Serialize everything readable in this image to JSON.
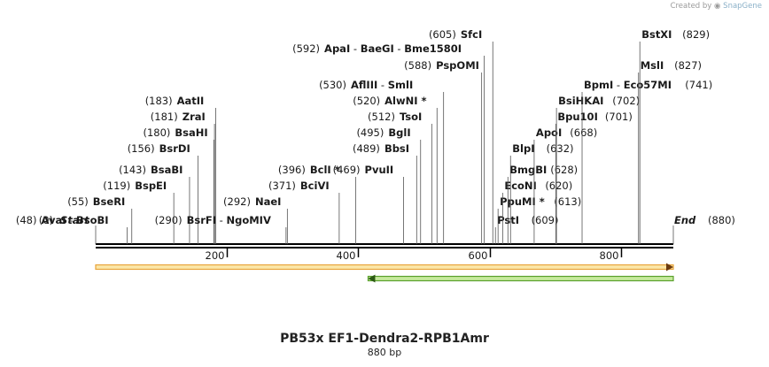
{
  "credit": {
    "prefix": "Created by",
    "brand": "SnapGene"
  },
  "title": "PB53x EF1-Dendra2-RPB1Amr",
  "subtitle": "880 bp",
  "map": {
    "length": 880,
    "ticks": [
      200,
      400,
      600,
      800
    ],
    "start": {
      "label": "Start",
      "position": 0
    },
    "end": {
      "label": "End",
      "position": 880
    },
    "features": [
      {
        "name": "orange-feature",
        "start": 0,
        "end": 880,
        "direction": "forward",
        "color": "#e8a33a",
        "fill": "#fbe6a8"
      },
      {
        "name": "green-feature",
        "start": 415,
        "end": 880,
        "direction": "reverse",
        "color": "#5aa02c",
        "fill": "#c6ea9c"
      }
    ]
  },
  "sites": [
    {
      "enzymes": [
        "AvaI",
        "BsoBI"
      ],
      "position": 48,
      "side": "left"
    },
    {
      "enzymes": [
        "BseRI"
      ],
      "position": 55,
      "side": "left"
    },
    {
      "enzymes": [
        "BspEI"
      ],
      "position": 119,
      "side": "left"
    },
    {
      "enzymes": [
        "BsaBI"
      ],
      "position": 143,
      "side": "left"
    },
    {
      "enzymes": [
        "BsrDI"
      ],
      "position": 156,
      "side": "left"
    },
    {
      "enzymes": [
        "BsaHI"
      ],
      "position": 180,
      "side": "left"
    },
    {
      "enzymes": [
        "ZraI"
      ],
      "position": 181,
      "side": "left"
    },
    {
      "enzymes": [
        "AatII"
      ],
      "position": 183,
      "side": "left"
    },
    {
      "enzymes": [
        "BsrFI",
        "NgoMIV"
      ],
      "position": 290,
      "side": "left"
    },
    {
      "enzymes": [
        "NaeI"
      ],
      "position": 292,
      "side": "left"
    },
    {
      "enzymes": [
        "BciVI"
      ],
      "position": 371,
      "side": "left"
    },
    {
      "enzymes": [
        "BclI *"
      ],
      "position": 396,
      "side": "left"
    },
    {
      "enzymes": [
        "PvuII"
      ],
      "position": 469,
      "side": "left"
    },
    {
      "enzymes": [
        "BbsI"
      ],
      "position": 489,
      "side": "left"
    },
    {
      "enzymes": [
        "BglI"
      ],
      "position": 495,
      "side": "left"
    },
    {
      "enzymes": [
        "TsoI"
      ],
      "position": 512,
      "side": "left"
    },
    {
      "enzymes": [
        "AlwNI *"
      ],
      "position": 520,
      "side": "left"
    },
    {
      "enzymes": [
        "AflIII",
        "SmlI"
      ],
      "position": 530,
      "side": "left"
    },
    {
      "enzymes": [
        "PspOMI"
      ],
      "position": 588,
      "side": "left"
    },
    {
      "enzymes": [
        "ApaI",
        "BaeGI",
        "Bme1580I"
      ],
      "position": 592,
      "side": "left"
    },
    {
      "enzymes": [
        "SfcI"
      ],
      "position": 605,
      "side": "left"
    },
    {
      "enzymes": [
        "PstI"
      ],
      "position": 609,
      "side": "right"
    },
    {
      "enzymes": [
        "PpuMI *"
      ],
      "position": 613,
      "side": "right"
    },
    {
      "enzymes": [
        "EcoNI"
      ],
      "position": 620,
      "side": "right"
    },
    {
      "enzymes": [
        "BmgBI"
      ],
      "position": 628,
      "side": "right"
    },
    {
      "enzymes": [
        "BlpI"
      ],
      "position": 632,
      "side": "right"
    },
    {
      "enzymes": [
        "ApoI"
      ],
      "position": 668,
      "side": "right"
    },
    {
      "enzymes": [
        "Bpu10I"
      ],
      "position": 701,
      "side": "right"
    },
    {
      "enzymes": [
        "BsiHKAI"
      ],
      "position": 702,
      "side": "right"
    },
    {
      "enzymes": [
        "BpmI",
        "Eco57MI"
      ],
      "position": 741,
      "side": "right"
    },
    {
      "enzymes": [
        "MslI"
      ],
      "position": 827,
      "side": "right"
    },
    {
      "enzymes": [
        "BstXI"
      ],
      "position": 829,
      "side": "right"
    }
  ]
}
